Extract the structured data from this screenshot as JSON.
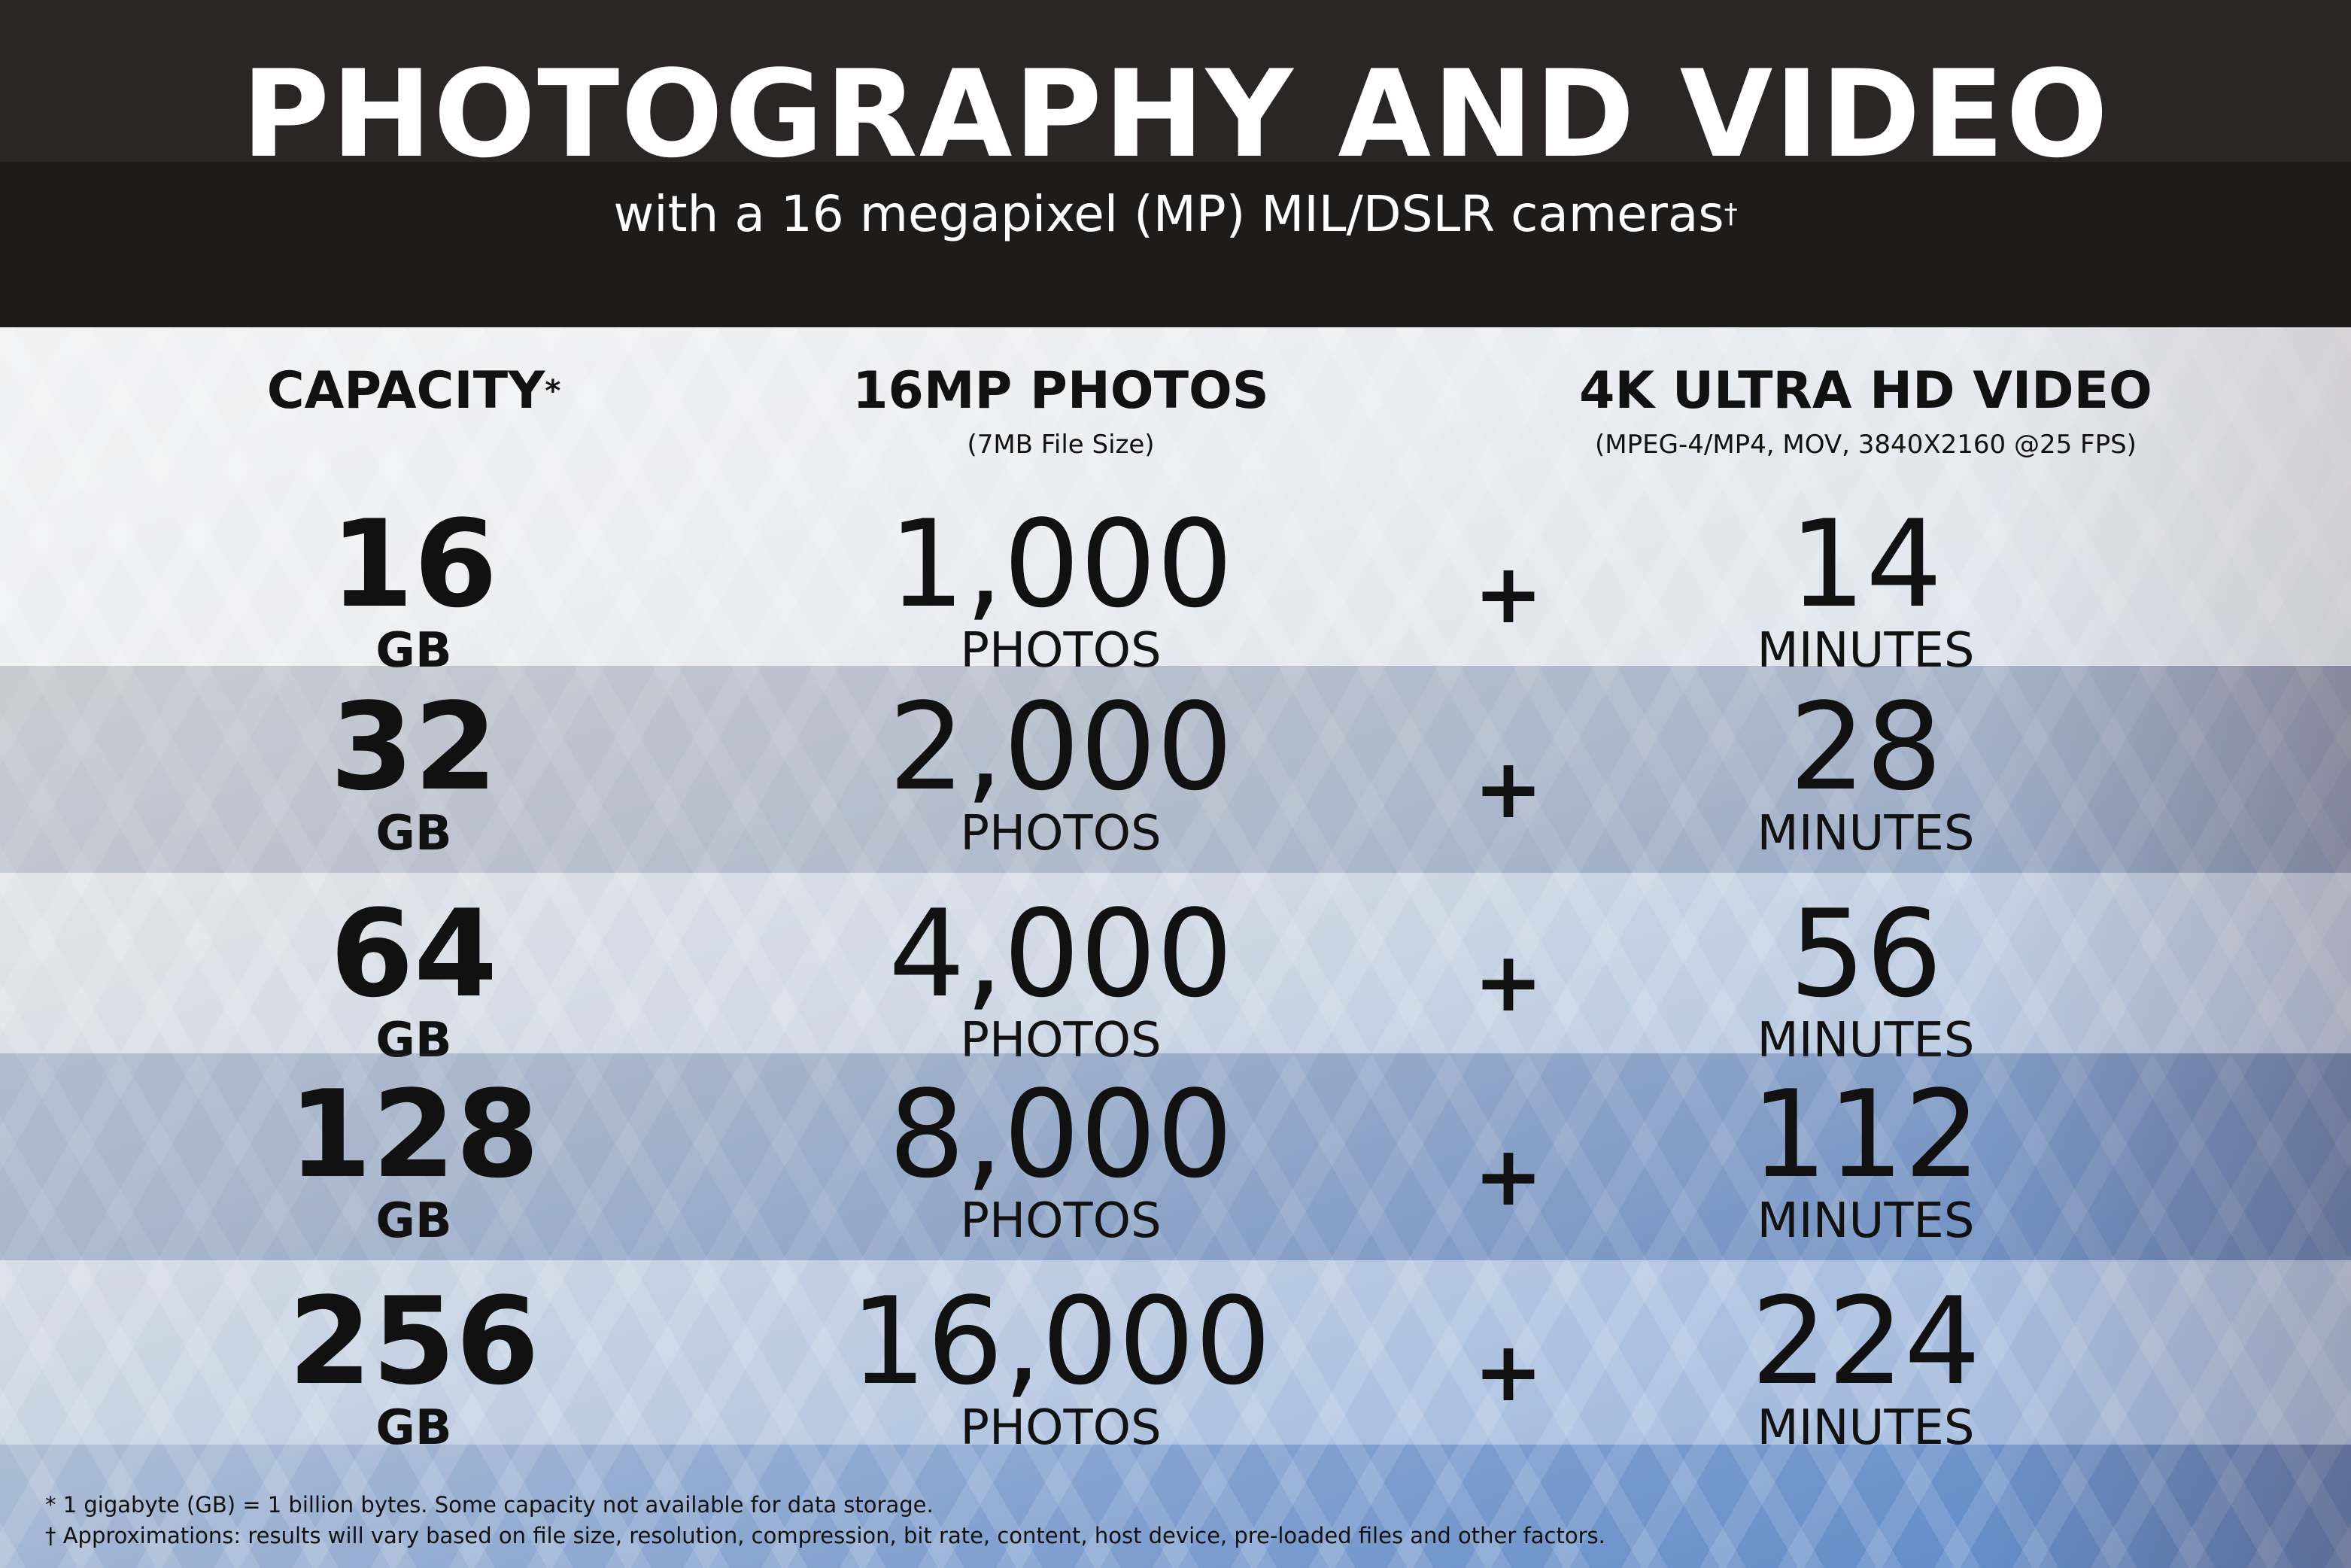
{
  "header": {
    "title": "PHOTOGRAPHY AND VIDEO",
    "subtitle": "with a 16 megapixel (MP) MIL/DSLR cameras",
    "subtitle_mark": "†"
  },
  "columns": [
    {
      "label": "CAPACITY",
      "mark": "*",
      "sub": ""
    },
    {
      "label": "16MP PHOTOS",
      "sub": "(7MB File Size)"
    },
    {
      "label": "4K ULTRA HD VIDEO",
      "sub": "(MPEG-4/MP4, MOV, 3840X2160 @25 FPS)"
    }
  ],
  "rows": [
    {
      "capacity": "16",
      "cap_unit": "GB",
      "photos": "1,000",
      "photos_unit": "PHOTOS",
      "plus": "+",
      "video": "14",
      "video_unit": "MINUTES"
    },
    {
      "capacity": "32",
      "cap_unit": "GB",
      "photos": "2,000",
      "photos_unit": "PHOTOS",
      "plus": "+",
      "video": "28",
      "video_unit": "MINUTES"
    },
    {
      "capacity": "64",
      "cap_unit": "GB",
      "photos": "4,000",
      "photos_unit": "PHOTOS",
      "plus": "+",
      "video": "56",
      "video_unit": "MINUTES"
    },
    {
      "capacity": "128",
      "cap_unit": "GB",
      "photos": "8,000",
      "photos_unit": "PHOTOS",
      "plus": "+",
      "video": "112",
      "video_unit": "MINUTES"
    },
    {
      "capacity": "256",
      "cap_unit": "GB",
      "photos": "16,000",
      "photos_unit": "PHOTOS",
      "plus": "+",
      "video": "224",
      "video_unit": "MINUTES"
    }
  ],
  "footnotes": [
    "* 1 gigabyte (GB) = 1 billion bytes. Some capacity not available for data storage.",
    "† Approximations: results will vary based on file size, resolution, compression, bit rate, content, host device, pre-loaded files and other factors."
  ]
}
